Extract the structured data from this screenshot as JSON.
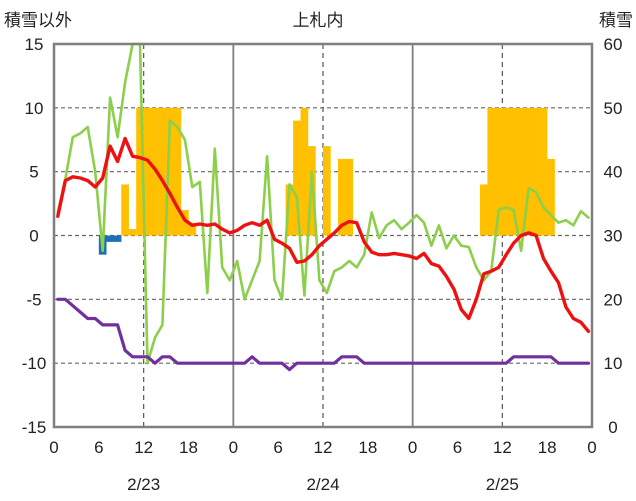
{
  "chart_data": {
    "type": "combo",
    "title": "上札内",
    "left_axis_label": "積雪以外",
    "right_axis_label": "積雪",
    "left_ylim": [
      -15,
      15
    ],
    "left_ticks": [
      "15",
      "10",
      "5",
      "0",
      "-5",
      "-10",
      "-15"
    ],
    "right_ylim": [
      0,
      60
    ],
    "right_ticks": [
      "60",
      "50",
      "40",
      "30",
      "20",
      "10",
      "0"
    ],
    "x_hours_per_day": 24,
    "x_days": 3,
    "x_tick_labels": [
      "0",
      "6",
      "12",
      "18",
      "0",
      "6",
      "12",
      "18",
      "0",
      "6",
      "12",
      "18",
      "0"
    ],
    "day_labels": [
      "2/23",
      "2/24",
      "2/25"
    ],
    "grid": true,
    "colors": {
      "temperature": "#ee1111",
      "green_series": "#8ccf4b",
      "purple_series": "#7030a0",
      "snow_depth_bars": "#ffc000",
      "negative_bars": "#1f6fb4",
      "frame": "#7f7f7f"
    },
    "series": [
      {
        "key": "temperature",
        "role": "line",
        "axis": "left",
        "x": [
          0,
          1,
          2,
          3,
          4,
          5,
          6,
          7,
          8,
          9,
          10,
          11,
          12,
          13,
          14,
          15,
          16,
          17,
          18,
          19,
          20,
          21,
          22,
          23,
          24,
          25,
          26,
          27,
          28,
          29,
          30,
          31,
          32,
          33,
          34,
          35,
          36,
          37,
          38,
          39,
          40,
          41,
          42,
          43,
          44,
          45,
          46,
          47,
          48,
          49,
          50,
          51,
          52,
          53,
          54,
          55,
          56,
          57,
          58,
          59,
          60,
          61,
          62,
          63,
          64,
          65,
          66,
          67,
          68,
          69,
          70,
          71
        ],
        "y": [
          1.5,
          4.3,
          4.6,
          4.5,
          4.3,
          3.8,
          4.5,
          7.0,
          5.8,
          7.6,
          6.2,
          6.1,
          5.9,
          5.2,
          4.3,
          3.3,
          2.2,
          1.2,
          0.8,
          0.9,
          0.8,
          0.9,
          0.5,
          0.2,
          0.4,
          0.8,
          1.0,
          0.8,
          1.2,
          -0.3,
          -0.6,
          -1.0,
          -2.1,
          -2.0,
          -1.5,
          -0.8,
          -0.3,
          0.2,
          0.8,
          1.1,
          1.0,
          -0.5,
          -1.3,
          -1.5,
          -1.5,
          -1.4,
          -1.5,
          -1.6,
          -1.8,
          -1.4,
          -2.2,
          -2.4,
          -3.2,
          -4.2,
          -5.8,
          -6.5,
          -5.0,
          -3.0,
          -2.8,
          -2.5,
          -1.5,
          -0.6,
          0.0,
          0.2,
          0.0,
          -1.8,
          -2.8,
          -3.7,
          -5.6,
          -6.5,
          -6.8,
          -7.5
        ]
      },
      {
        "key": "green_series",
        "role": "line",
        "axis": "left",
        "x": [
          0,
          1,
          2,
          3,
          4,
          5,
          6,
          7,
          8,
          9,
          10,
          11,
          12,
          13,
          14,
          15,
          16,
          17,
          18,
          19,
          20,
          21,
          22,
          23,
          24,
          25,
          26,
          27,
          28,
          29,
          30,
          31,
          32,
          33,
          34,
          35,
          36,
          37,
          38,
          39,
          40,
          41,
          42,
          43,
          44,
          45,
          46,
          47,
          48,
          49,
          50,
          51,
          52,
          53,
          54,
          55,
          56,
          57,
          58,
          59,
          60,
          61,
          62,
          63,
          64,
          65,
          66,
          67,
          68,
          69,
          70,
          71
        ],
        "y": [
          1.8,
          4.4,
          7.7,
          8.0,
          8.5,
          5.0,
          -1.2,
          10.8,
          7.7,
          12.0,
          15.0,
          15.0,
          -10.0,
          -8.0,
          -7.0,
          9.0,
          8.5,
          7.5,
          3.8,
          4.2,
          -4.5,
          6.8,
          -2.5,
          -3.5,
          -2.0,
          -5.0,
          -3.5,
          -2.0,
          6.2,
          -3.5,
          -5.0,
          4.0,
          3.0,
          -4.7,
          5.0,
          -3.5,
          -4.5,
          -2.8,
          -2.5,
          -2.0,
          -2.5,
          -1.5,
          1.8,
          -0.2,
          0.8,
          1.2,
          0.5,
          1.0,
          1.6,
          1.0,
          -0.8,
          0.8,
          -1.0,
          0.0,
          -0.8,
          -0.9,
          -2.5,
          -3.5,
          -2.8,
          2.0,
          2.2,
          2.0,
          -1.2,
          3.7,
          3.4,
          2.2,
          1.6,
          1.0,
          1.2,
          0.8,
          1.9,
          1.4
        ]
      },
      {
        "key": "purple_series",
        "role": "line",
        "axis": "left",
        "x": [
          0,
          1,
          2,
          3,
          4,
          5,
          6,
          7,
          8,
          9,
          10,
          11,
          12,
          13,
          14,
          15,
          16,
          17,
          18,
          19,
          20,
          21,
          22,
          23,
          24,
          25,
          26,
          27,
          28,
          29,
          30,
          31,
          32,
          33,
          34,
          35,
          36,
          37,
          38,
          39,
          40,
          41,
          42,
          43,
          44,
          45,
          46,
          47,
          48,
          49,
          50,
          51,
          52,
          53,
          54,
          55,
          56,
          57,
          58,
          59,
          60,
          61,
          62,
          63,
          64,
          65,
          66,
          67,
          68,
          69,
          70,
          71
        ],
        "y": [
          -5,
          -5,
          -5.5,
          -6,
          -6.5,
          -6.5,
          -7,
          -7,
          -7,
          -9,
          -9.5,
          -9.5,
          -9.5,
          -10,
          -9.5,
          -9.5,
          -10,
          -10,
          -10,
          -10,
          -10,
          -10,
          -10,
          -10,
          -10,
          -10,
          -9.5,
          -10,
          -10,
          -10,
          -10,
          -10.5,
          -10,
          -10,
          -10,
          -10,
          -10,
          -10,
          -9.5,
          -9.5,
          -9.5,
          -10,
          -10,
          -10,
          -10,
          -10,
          -10,
          -10,
          -10,
          -10,
          -10,
          -10,
          -10,
          -10,
          -10,
          -10,
          -10,
          -10,
          -10,
          -10,
          -10,
          -9.5,
          -9.5,
          -9.5,
          -9.5,
          -9.5,
          -9.5,
          -10,
          -10,
          -10,
          -10,
          -10
        ]
      },
      {
        "key": "snow_depth_bars",
        "role": "bar",
        "axis": "right",
        "x": [
          0,
          1,
          2,
          3,
          4,
          5,
          6,
          7,
          8,
          9,
          10,
          11,
          12,
          13,
          14,
          15,
          16,
          17,
          18,
          19,
          20,
          21,
          22,
          23,
          24,
          25,
          26,
          27,
          28,
          29,
          30,
          31,
          32,
          33,
          34,
          35,
          36,
          37,
          38,
          39,
          40,
          41,
          42,
          43,
          44,
          45,
          46,
          47,
          48,
          49,
          50,
          51,
          52,
          53,
          54,
          55,
          56,
          57,
          58,
          59,
          60,
          61,
          62,
          63,
          64,
          65,
          66,
          67,
          68,
          69,
          70,
          71
        ],
        "y": [
          0,
          0,
          0,
          0,
          0,
          0,
          0,
          0,
          0,
          38,
          31,
          50,
          50,
          50,
          50,
          50,
          50,
          34,
          32,
          30,
          30,
          30,
          30,
          30,
          30,
          30,
          30,
          30,
          30,
          30,
          30,
          38,
          48,
          50,
          44,
          30,
          44,
          30,
          42,
          42,
          30,
          30,
          30,
          30,
          30,
          30,
          30,
          30,
          30,
          30,
          30,
          30,
          30,
          30,
          30,
          30,
          30,
          38,
          50,
          50,
          50,
          50,
          50,
          50,
          50,
          50,
          42,
          30,
          30,
          30,
          30,
          30
        ]
      },
      {
        "key": "negative_bars",
        "role": "bar",
        "axis": "left",
        "x": [
          6,
          7,
          8
        ],
        "y": [
          -1.5,
          -0.5,
          -0.5
        ]
      }
    ]
  }
}
